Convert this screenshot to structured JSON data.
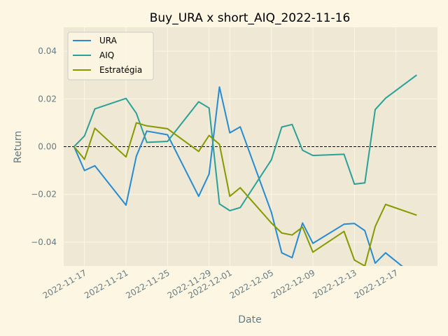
{
  "chart_data": {
    "type": "line",
    "title": "Buy_URA x short_AIQ_2022-11-16",
    "xlabel": "Date",
    "ylabel": "Return",
    "xlim": [
      "2022-11-15",
      "2022-12-21"
    ],
    "ylim": [
      -0.05,
      0.05
    ],
    "yticks": [
      -0.04,
      -0.02,
      0.0,
      0.02,
      0.04
    ],
    "ytick_labels": [
      "−0.04",
      "−0.02",
      "0.00",
      "0.02",
      "0.04"
    ],
    "xticks": [
      "2022-11-17",
      "2022-11-21",
      "2022-11-25",
      "2022-11-29",
      "2022-12-01",
      "2022-12-05",
      "2022-12-09",
      "2022-12-13",
      "2022-12-17"
    ],
    "grid": true,
    "legend_position": "top-left",
    "reference_line": {
      "y": 0,
      "style": "dashed",
      "color": "#000000"
    },
    "x": [
      "2022-11-16",
      "2022-11-17",
      "2022-11-18",
      "2022-11-21",
      "2022-11-22",
      "2022-11-23",
      "2022-11-25",
      "2022-11-28",
      "2022-11-29",
      "2022-11-30",
      "2022-12-01",
      "2022-12-02",
      "2022-12-05",
      "2022-12-06",
      "2022-12-07",
      "2022-12-08",
      "2022-12-09",
      "2022-12-12",
      "2022-12-13",
      "2022-12-14",
      "2022-12-15",
      "2022-12-16",
      "2022-12-19"
    ],
    "series": [
      {
        "name": "URA",
        "color": "#268bd2",
        "values": [
          0.0,
          -0.01,
          -0.008,
          -0.0245,
          -0.004,
          0.0065,
          0.005,
          -0.0208,
          -0.0115,
          0.025,
          0.0058,
          0.0083,
          -0.0275,
          -0.0445,
          -0.0465,
          -0.032,
          -0.0405,
          -0.0325,
          -0.0322,
          -0.0352,
          -0.0488,
          -0.0445,
          -0.055
        ]
      },
      {
        "name": "AIQ",
        "color": "#2aa198",
        "values": [
          0.0,
          0.0045,
          0.0158,
          0.0202,
          0.014,
          0.0018,
          0.0022,
          0.0188,
          0.0162,
          -0.024,
          -0.0268,
          -0.0255,
          -0.0055,
          0.0082,
          0.0093,
          -0.0015,
          -0.0037,
          -0.0032,
          -0.0157,
          -0.0152,
          0.0155,
          0.0203,
          0.03
        ]
      },
      {
        "name": "Estratégia",
        "color": "#859900",
        "values": [
          0.0,
          -0.0053,
          0.0077,
          -0.0043,
          0.01,
          0.0087,
          0.0075,
          -0.002,
          0.0047,
          0.001,
          -0.0208,
          -0.0172,
          -0.032,
          -0.0362,
          -0.037,
          -0.0337,
          -0.0442,
          -0.0355,
          -0.0475,
          -0.05,
          -0.0335,
          -0.0242,
          -0.0287
        ]
      }
    ]
  }
}
